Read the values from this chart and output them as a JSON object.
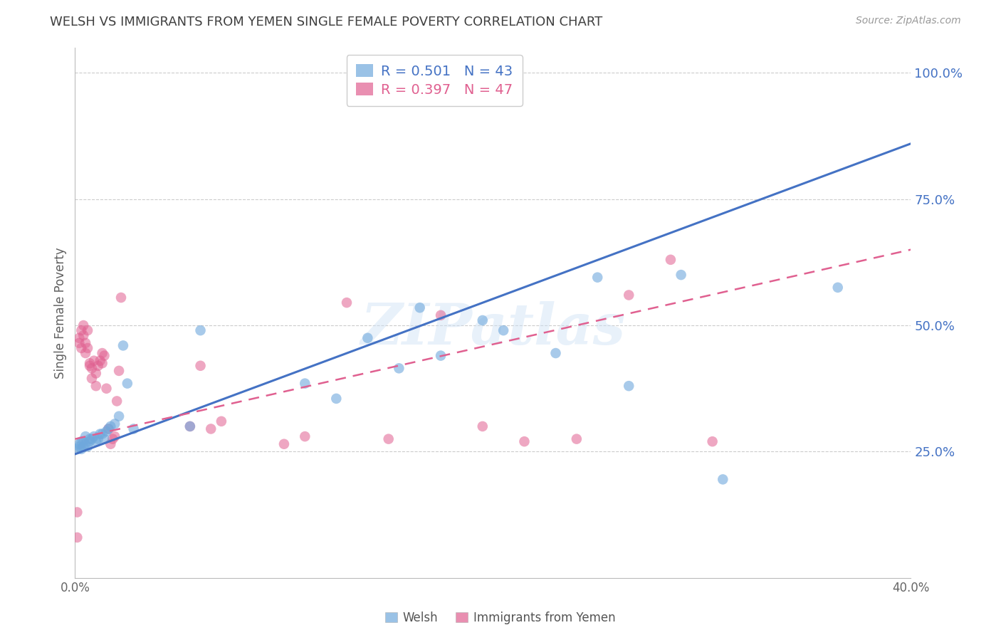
{
  "title": "WELSH VS IMMIGRANTS FROM YEMEN SINGLE FEMALE POVERTY CORRELATION CHART",
  "source": "Source: ZipAtlas.com",
  "ylabel": "Single Female Poverty",
  "watermark": "ZIPatlas",
  "xmin": 0.0,
  "xmax": 0.4,
  "ymin": 0.0,
  "ymax": 1.05,
  "xtick_vals": [
    0.0,
    0.05,
    0.1,
    0.15,
    0.2,
    0.25,
    0.3,
    0.35,
    0.4
  ],
  "xtick_labels": [
    "0.0%",
    "",
    "",
    "",
    "",
    "",
    "",
    "",
    "40.0%"
  ],
  "ytick_positions": [
    0.25,
    0.5,
    0.75,
    1.0
  ],
  "ytick_labels": [
    "25.0%",
    "50.0%",
    "75.0%",
    "100.0%"
  ],
  "welsh_color": "#6fa8dc",
  "yemen_color": "#e06090",
  "welsh_line_color": "#4472c4",
  "yemen_line_color": "#e06090",
  "legend_welsh": "R = 0.501   N = 43",
  "legend_yemen": "R = 0.397   N = 47",
  "title_color": "#404040",
  "axis_label_color": "#606060",
  "right_tick_color": "#4472c4",
  "background_color": "#ffffff",
  "grid_color": "#cccccc",
  "welsh_line_x0": 0.0,
  "welsh_line_y0": 0.245,
  "welsh_line_x1": 0.4,
  "welsh_line_y1": 0.86,
  "yemen_line_x0": 0.0,
  "yemen_line_y0": 0.275,
  "yemen_line_x1": 0.4,
  "yemen_line_y1": 0.65,
  "welsh_scatter_x": [
    0.001,
    0.002,
    0.002,
    0.003,
    0.003,
    0.004,
    0.004,
    0.005,
    0.005,
    0.006,
    0.007,
    0.007,
    0.008,
    0.009,
    0.01,
    0.011,
    0.012,
    0.013,
    0.014,
    0.015,
    0.016,
    0.017,
    0.019,
    0.021,
    0.023,
    0.025,
    0.028,
    0.055,
    0.06,
    0.11,
    0.125,
    0.14,
    0.155,
    0.165,
    0.175,
    0.195,
    0.205,
    0.23,
    0.25,
    0.265,
    0.29,
    0.31,
    0.365
  ],
  "welsh_scatter_y": [
    0.255,
    0.26,
    0.265,
    0.255,
    0.27,
    0.26,
    0.27,
    0.265,
    0.28,
    0.26,
    0.27,
    0.275,
    0.275,
    0.28,
    0.27,
    0.275,
    0.285,
    0.285,
    0.275,
    0.29,
    0.295,
    0.3,
    0.305,
    0.32,
    0.46,
    0.385,
    0.295,
    0.3,
    0.49,
    0.385,
    0.355,
    0.475,
    0.415,
    0.535,
    0.44,
    0.51,
    0.49,
    0.445,
    0.595,
    0.38,
    0.6,
    0.195,
    0.575
  ],
  "yemen_scatter_x": [
    0.001,
    0.001,
    0.002,
    0.002,
    0.003,
    0.003,
    0.004,
    0.004,
    0.005,
    0.005,
    0.006,
    0.006,
    0.007,
    0.007,
    0.008,
    0.008,
    0.009,
    0.01,
    0.01,
    0.011,
    0.012,
    0.013,
    0.013,
    0.014,
    0.015,
    0.016,
    0.017,
    0.018,
    0.019,
    0.02,
    0.021,
    0.022,
    0.055,
    0.06,
    0.065,
    0.07,
    0.1,
    0.11,
    0.13,
    0.15,
    0.175,
    0.195,
    0.215,
    0.24,
    0.265,
    0.285,
    0.305
  ],
  "yemen_scatter_y": [
    0.13,
    0.08,
    0.475,
    0.465,
    0.455,
    0.49,
    0.48,
    0.5,
    0.465,
    0.445,
    0.455,
    0.49,
    0.425,
    0.42,
    0.395,
    0.415,
    0.43,
    0.38,
    0.405,
    0.42,
    0.43,
    0.425,
    0.445,
    0.44,
    0.375,
    0.295,
    0.265,
    0.275,
    0.28,
    0.35,
    0.41,
    0.555,
    0.3,
    0.42,
    0.295,
    0.31,
    0.265,
    0.28,
    0.545,
    0.275,
    0.52,
    0.3,
    0.27,
    0.275,
    0.56,
    0.63,
    0.27
  ]
}
